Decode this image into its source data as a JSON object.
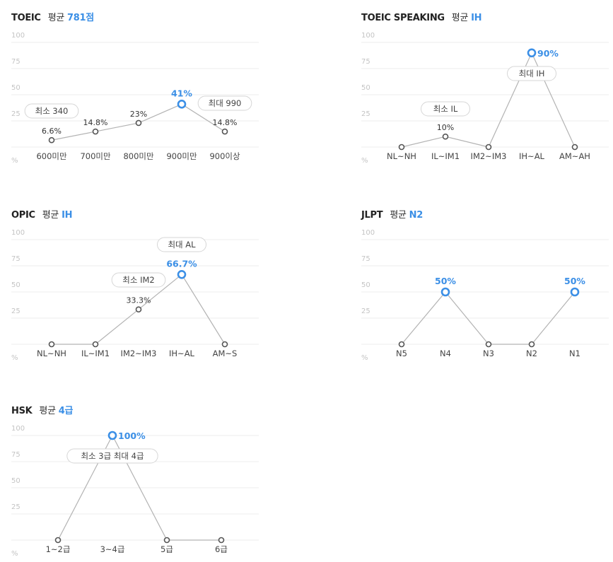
{
  "colors": {
    "accent": "#3b8fe6",
    "line": "#b3b3b3",
    "point": "#555555",
    "grid": "#ececec"
  },
  "unit": "%",
  "chart_data": [
    {
      "type": "line",
      "title": "TOEIC",
      "avg_label": "평균",
      "avg_value": "781점",
      "ylim": [
        0,
        100
      ],
      "yticks": [
        "25",
        "50",
        "75",
        "100"
      ],
      "categories": [
        "600미만",
        "700미만",
        "800미만",
        "900미만",
        "900이상"
      ],
      "values": [
        6.6,
        14.8,
        23,
        41,
        14.8
      ],
      "value_labels": [
        "6.6%",
        "14.8%",
        "23%",
        "41%",
        "14.8%"
      ],
      "highlight_index": 3,
      "callouts": [
        {
          "text": "최소 340",
          "index": 0
        },
        {
          "text": "최대 990",
          "index": 4
        }
      ]
    },
    {
      "type": "line",
      "title": "TOEIC SPEAKING",
      "avg_label": "평균",
      "avg_value": "IH",
      "ylim": [
        0,
        100
      ],
      "yticks": [
        "25",
        "50",
        "75",
        "100"
      ],
      "categories": [
        "NL~NH",
        "IL~IM1",
        "IM2~IM3",
        "IH~AL",
        "AM~AH"
      ],
      "values": [
        0,
        10,
        0,
        90,
        0
      ],
      "value_labels": [
        "",
        "10%",
        "",
        "90%",
        ""
      ],
      "highlight_index": 3,
      "callouts": [
        {
          "text": "최소 IL",
          "index": 1
        },
        {
          "text": "최대 IH",
          "index": 3
        }
      ]
    },
    {
      "type": "line",
      "title": "OPIC",
      "avg_label": "평균",
      "avg_value": "IH",
      "ylim": [
        0,
        100
      ],
      "yticks": [
        "25",
        "50",
        "75",
        "100"
      ],
      "categories": [
        "NL~NH",
        "IL~IM1",
        "IM2~IM3",
        "IH~AL",
        "AM~S"
      ],
      "values": [
        0,
        0,
        33.3,
        66.7,
        0
      ],
      "value_labels": [
        "",
        "",
        "33.3%",
        "66.7%",
        ""
      ],
      "highlight_index": 3,
      "callouts": [
        {
          "text": "최소 IM2",
          "index": 2
        },
        {
          "text": "최대 AL",
          "index": 3
        }
      ]
    },
    {
      "type": "line",
      "title": "JLPT",
      "avg_label": "평균",
      "avg_value": "N2",
      "ylim": [
        0,
        100
      ],
      "yticks": [
        "25",
        "50",
        "75",
        "100"
      ],
      "categories": [
        "N5",
        "N4",
        "N3",
        "N2",
        "N1"
      ],
      "values": [
        0,
        50,
        0,
        0,
        50
      ],
      "value_labels": [
        "",
        "50%",
        "",
        "",
        "50%"
      ],
      "highlight_indices": [
        1,
        4
      ],
      "callouts": []
    },
    {
      "type": "line",
      "title": "HSK",
      "avg_label": "평균",
      "avg_value": "4급",
      "ylim": [
        0,
        100
      ],
      "yticks": [
        "25",
        "50",
        "75",
        "100"
      ],
      "categories": [
        "1~2급",
        "3~4급",
        "5급",
        "6급"
      ],
      "values": [
        0,
        100,
        0,
        0
      ],
      "value_labels": [
        "",
        "100%",
        "",
        ""
      ],
      "highlight_index": 1,
      "callouts": [
        {
          "text": "최소 3급 최대 4급",
          "index": 1
        }
      ]
    }
  ]
}
